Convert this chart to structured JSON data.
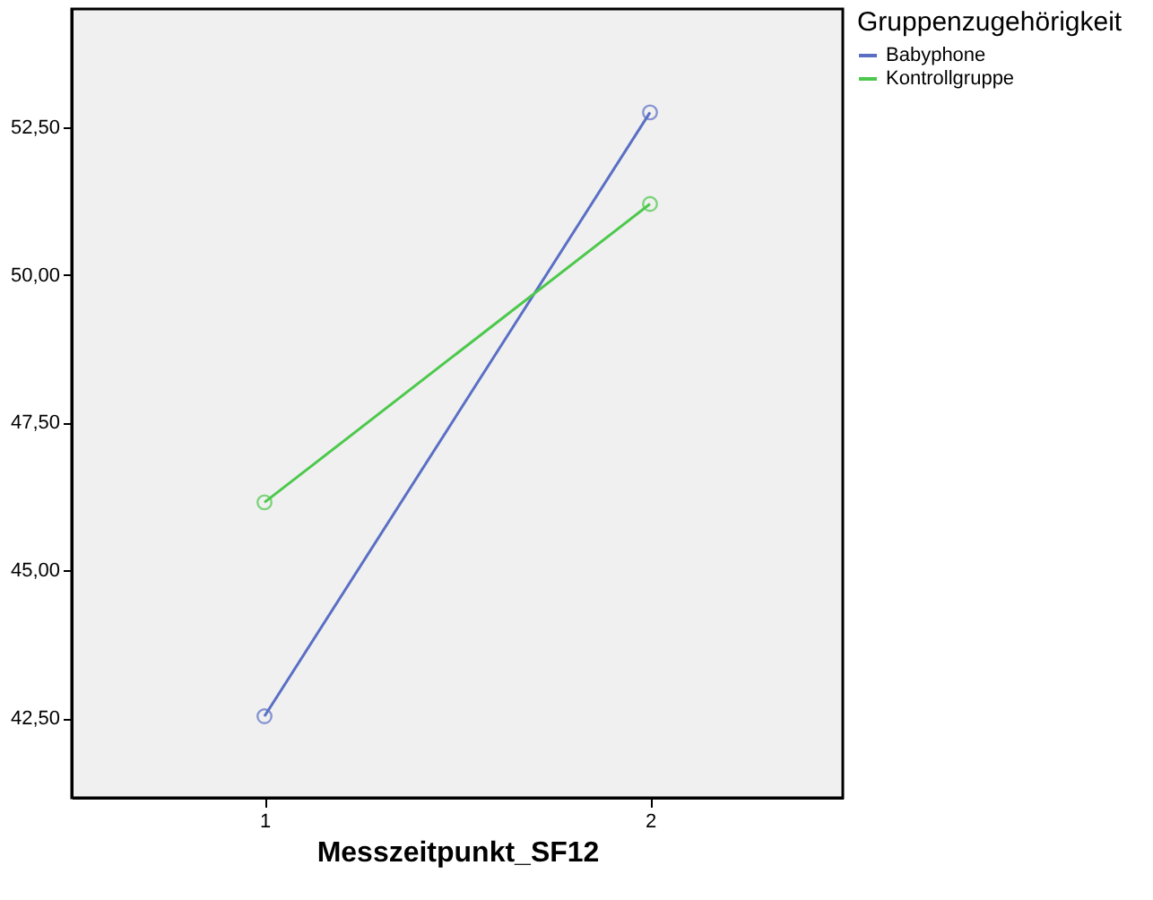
{
  "chart_data": {
    "type": "line",
    "xlabel": "Messzeitpunkt_SF12",
    "legend_title": "Gruppenzugehörigkeit",
    "categories": [
      "1",
      "2"
    ],
    "series": [
      {
        "name": "Babyphone",
        "color": "#5a6fc4",
        "values": [
          42.53,
          52.75
        ]
      },
      {
        "name": "Kontrollgruppe",
        "color": "#4cc94c",
        "values": [
          46.15,
          51.2
        ]
      }
    ],
    "ylim": [
      41.15,
      54.5
    ],
    "yticks": [
      {
        "value": 42.5,
        "label": "42,50"
      },
      {
        "value": 45,
        "label": "45,00"
      },
      {
        "value": 47.5,
        "label": "47,50"
      },
      {
        "value": 50,
        "label": "50,00"
      },
      {
        "value": 52.5,
        "label": "52,50"
      }
    ],
    "marker": "circle",
    "legend": "top right",
    "grid": false
  }
}
